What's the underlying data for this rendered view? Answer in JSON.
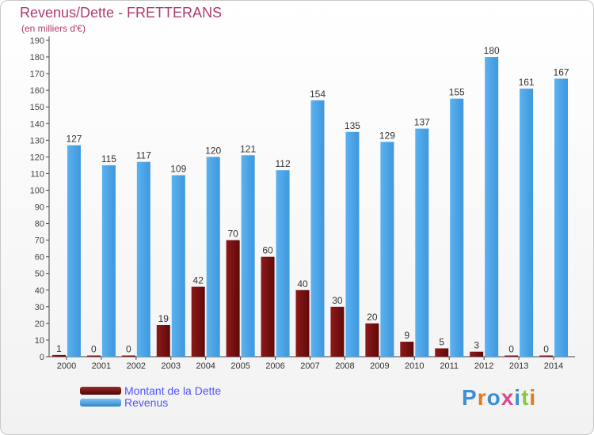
{
  "title": "Revenus/Dette - FRETTERANS",
  "subtitle": "(en milliers d'€)",
  "logo_text": "Proxiti",
  "colors": {
    "debt": "#7a1010",
    "revenue": "#4aa3e8",
    "title": "#b03a6e",
    "legend_text": "#5055ff"
  },
  "chart_data": {
    "type": "bar",
    "categories": [
      "2000",
      "2001",
      "2002",
      "2003",
      "2004",
      "2005",
      "2006",
      "2007",
      "2008",
      "2009",
      "2010",
      "2011",
      "2012",
      "2013",
      "2014"
    ],
    "series": [
      {
        "name": "Montant de la Dette",
        "values": [
          1,
          0,
          0,
          19,
          42,
          70,
          60,
          40,
          30,
          20,
          9,
          5,
          3,
          0,
          0
        ]
      },
      {
        "name": "Revenus",
        "values": [
          127,
          115,
          117,
          109,
          120,
          121,
          112,
          154,
          135,
          129,
          137,
          155,
          180,
          161,
          167
        ]
      }
    ],
    "ylim": [
      0,
      190
    ],
    "ytick_step": 10,
    "grid": false,
    "legend_position": "bottom-left"
  }
}
